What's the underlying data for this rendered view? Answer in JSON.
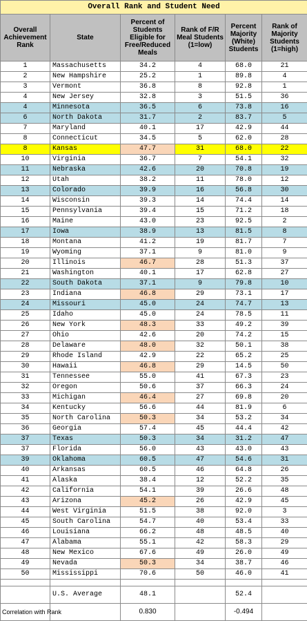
{
  "title": "Overall Rank and Student Need",
  "headers": {
    "rank": "Overall Achievement Rank",
    "state": "State",
    "pct_free": "Percent of Students Eligible for Free/Reduced Meals",
    "rank_free": "Rank of F/R Meal Students (1=low)",
    "pct_white": "Percent Majority (White) Students",
    "rank_white": "Rank of Majority Students (1=high)"
  },
  "rows": [
    {
      "rank": "1",
      "state": "Massachusetts",
      "pct_free": "34.2",
      "rank_free": "4",
      "pct_white": "68.0",
      "rank_white": "21",
      "highlight": "",
      "peach": false
    },
    {
      "rank": "2",
      "state": "New Hampshire",
      "pct_free": "25.2",
      "rank_free": "1",
      "pct_white": "89.8",
      "rank_white": "4",
      "highlight": "",
      "peach": false
    },
    {
      "rank": "3",
      "state": "Vermont",
      "pct_free": "36.8",
      "rank_free": "8",
      "pct_white": "92.8",
      "rank_white": "1",
      "highlight": "",
      "peach": false
    },
    {
      "rank": "4",
      "state": "New Jersey",
      "pct_free": "32.8",
      "rank_free": "3",
      "pct_white": "51.5",
      "rank_white": "36",
      "highlight": "",
      "peach": false
    },
    {
      "rank": "4",
      "state": "Minnesota",
      "pct_free": "36.5",
      "rank_free": "6",
      "pct_white": "73.8",
      "rank_white": "16",
      "highlight": "blue",
      "peach": false
    },
    {
      "rank": "6",
      "state": "North Dakota",
      "pct_free": "31.7",
      "rank_free": "2",
      "pct_white": "83.7",
      "rank_white": "5",
      "highlight": "blue",
      "peach": false
    },
    {
      "rank": "7",
      "state": "Maryland",
      "pct_free": "40.1",
      "rank_free": "17",
      "pct_white": "42.9",
      "rank_white": "44",
      "highlight": "",
      "peach": false
    },
    {
      "rank": "8",
      "state": "Connecticut",
      "pct_free": "34.5",
      "rank_free": "5",
      "pct_white": "62.0",
      "rank_white": "28",
      "highlight": "",
      "peach": false
    },
    {
      "rank": "8",
      "state": "Kansas",
      "pct_free": "47.7",
      "rank_free": "31",
      "pct_white": "68.0",
      "rank_white": "22",
      "highlight": "yellow",
      "peach": true
    },
    {
      "rank": "10",
      "state": "Virginia",
      "pct_free": "36.7",
      "rank_free": "7",
      "pct_white": "54.1",
      "rank_white": "32",
      "highlight": "",
      "peach": false
    },
    {
      "rank": "11",
      "state": "Nebraska",
      "pct_free": "42.6",
      "rank_free": "20",
      "pct_white": "70.8",
      "rank_white": "19",
      "highlight": "blue",
      "peach": false
    },
    {
      "rank": "12",
      "state": "Utah",
      "pct_free": "38.2",
      "rank_free": "11",
      "pct_white": "78.0",
      "rank_white": "12",
      "highlight": "",
      "peach": false
    },
    {
      "rank": "13",
      "state": "Colorado",
      "pct_free": "39.9",
      "rank_free": "16",
      "pct_white": "56.8",
      "rank_white": "30",
      "highlight": "blue",
      "peach": false
    },
    {
      "rank": "14",
      "state": "Wisconsin",
      "pct_free": "39.3",
      "rank_free": "14",
      "pct_white": "74.4",
      "rank_white": "14",
      "highlight": "",
      "peach": false
    },
    {
      "rank": "15",
      "state": "Pennsylvania",
      "pct_free": "39.4",
      "rank_free": "15",
      "pct_white": "71.2",
      "rank_white": "18",
      "highlight": "",
      "peach": false
    },
    {
      "rank": "16",
      "state": "Maine",
      "pct_free": "43.0",
      "rank_free": "23",
      "pct_white": "92.5",
      "rank_white": "2",
      "highlight": "",
      "peach": false
    },
    {
      "rank": "17",
      "state": "Iowa",
      "pct_free": "38.9",
      "rank_free": "13",
      "pct_white": "81.5",
      "rank_white": "8",
      "highlight": "blue",
      "peach": false
    },
    {
      "rank": "18",
      "state": "Montana",
      "pct_free": "41.2",
      "rank_free": "19",
      "pct_white": "81.7",
      "rank_white": "7",
      "highlight": "",
      "peach": false
    },
    {
      "rank": "19",
      "state": "Wyoming",
      "pct_free": "37.1",
      "rank_free": "9",
      "pct_white": "81.0",
      "rank_white": "9",
      "highlight": "",
      "peach": false
    },
    {
      "rank": "20",
      "state": "Illinois",
      "pct_free": "46.7",
      "rank_free": "28",
      "pct_white": "51.3",
      "rank_white": "37",
      "highlight": "",
      "peach": true
    },
    {
      "rank": "21",
      "state": "Washington",
      "pct_free": "40.1",
      "rank_free": "17",
      "pct_white": "62.8",
      "rank_white": "27",
      "highlight": "",
      "peach": false
    },
    {
      "rank": "22",
      "state": "South Dakota",
      "pct_free": "37.1",
      "rank_free": "9",
      "pct_white": "79.8",
      "rank_white": "10",
      "highlight": "blue",
      "peach": false
    },
    {
      "rank": "23",
      "state": "Indiana",
      "pct_free": "46.8",
      "rank_free": "29",
      "pct_white": "73.1",
      "rank_white": "17",
      "highlight": "",
      "peach": true
    },
    {
      "rank": "24",
      "state": "Missouri",
      "pct_free": "45.0",
      "rank_free": "24",
      "pct_white": "74.7",
      "rank_white": "13",
      "highlight": "blue",
      "peach": false
    },
    {
      "rank": "25",
      "state": "Idaho",
      "pct_free": "45.0",
      "rank_free": "24",
      "pct_white": "78.5",
      "rank_white": "11",
      "highlight": "",
      "peach": false
    },
    {
      "rank": "26",
      "state": "New York",
      "pct_free": "48.3",
      "rank_free": "33",
      "pct_white": "49.2",
      "rank_white": "39",
      "highlight": "",
      "peach": true
    },
    {
      "rank": "27",
      "state": "Ohio",
      "pct_free": "42.6",
      "rank_free": "20",
      "pct_white": "74.2",
      "rank_white": "15",
      "highlight": "",
      "peach": false
    },
    {
      "rank": "28",
      "state": "Delaware",
      "pct_free": "48.0",
      "rank_free": "32",
      "pct_white": "50.1",
      "rank_white": "38",
      "highlight": "",
      "peach": true
    },
    {
      "rank": "29",
      "state": "Rhode Island",
      "pct_free": "42.9",
      "rank_free": "22",
      "pct_white": "65.2",
      "rank_white": "25",
      "highlight": "",
      "peach": false
    },
    {
      "rank": "30",
      "state": "Hawaii",
      "pct_free": "46.8",
      "rank_free": "29",
      "pct_white": "14.5",
      "rank_white": "50",
      "highlight": "",
      "peach": true
    },
    {
      "rank": "31",
      "state": "Tennessee",
      "pct_free": "55.0",
      "rank_free": "41",
      "pct_white": "67.3",
      "rank_white": "23",
      "highlight": "",
      "peach": false
    },
    {
      "rank": "32",
      "state": "Oregon",
      "pct_free": "50.6",
      "rank_free": "37",
      "pct_white": "66.3",
      "rank_white": "24",
      "highlight": "",
      "peach": false
    },
    {
      "rank": "33",
      "state": "Michigan",
      "pct_free": "46.4",
      "rank_free": "27",
      "pct_white": "69.8",
      "rank_white": "20",
      "highlight": "",
      "peach": true
    },
    {
      "rank": "34",
      "state": "Kentucky",
      "pct_free": "56.6",
      "rank_free": "44",
      "pct_white": "81.9",
      "rank_white": "6",
      "highlight": "",
      "peach": false
    },
    {
      "rank": "35",
      "state": "North Carolina",
      "pct_free": "50.3",
      "rank_free": "34",
      "pct_white": "53.2",
      "rank_white": "34",
      "highlight": "",
      "peach": true
    },
    {
      "rank": "36",
      "state": "Georgia",
      "pct_free": "57.4",
      "rank_free": "45",
      "pct_white": "44.4",
      "rank_white": "42",
      "highlight": "",
      "peach": false
    },
    {
      "rank": "37",
      "state": "Texas",
      "pct_free": "50.3",
      "rank_free": "34",
      "pct_white": "31.2",
      "rank_white": "47",
      "highlight": "blue",
      "peach": false
    },
    {
      "rank": "37",
      "state": "Florida",
      "pct_free": "56.0",
      "rank_free": "43",
      "pct_white": "43.0",
      "rank_white": "43",
      "highlight": "",
      "peach": false
    },
    {
      "rank": "39",
      "state": "Oklahoma",
      "pct_free": "60.5",
      "rank_free": "47",
      "pct_white": "54.6",
      "rank_white": "31",
      "highlight": "blue",
      "peach": false
    },
    {
      "rank": "40",
      "state": "Arkansas",
      "pct_free": "60.5",
      "rank_free": "46",
      "pct_white": "64.8",
      "rank_white": "26",
      "highlight": "",
      "peach": false
    },
    {
      "rank": "41",
      "state": "Alaska",
      "pct_free": "38.4",
      "rank_free": "12",
      "pct_white": "52.2",
      "rank_white": "35",
      "highlight": "",
      "peach": false
    },
    {
      "rank": "42",
      "state": "California",
      "pct_free": "54.1",
      "rank_free": "39",
      "pct_white": "26.6",
      "rank_white": "48",
      "highlight": "",
      "peach": false
    },
    {
      "rank": "43",
      "state": "Arizona",
      "pct_free": "45.2",
      "rank_free": "26",
      "pct_white": "42.9",
      "rank_white": "45",
      "highlight": "",
      "peach": true
    },
    {
      "rank": "44",
      "state": "West Virginia",
      "pct_free": "51.5",
      "rank_free": "38",
      "pct_white": "92.0",
      "rank_white": "3",
      "highlight": "",
      "peach": false
    },
    {
      "rank": "45",
      "state": "South Carolina",
      "pct_free": "54.7",
      "rank_free": "40",
      "pct_white": "53.4",
      "rank_white": "33",
      "highlight": "",
      "peach": false
    },
    {
      "rank": "46",
      "state": "Louisiana",
      "pct_free": "66.2",
      "rank_free": "48",
      "pct_white": "48.5",
      "rank_white": "40",
      "highlight": "",
      "peach": false
    },
    {
      "rank": "47",
      "state": "Alabama",
      "pct_free": "55.1",
      "rank_free": "42",
      "pct_white": "58.3",
      "rank_white": "29",
      "highlight": "",
      "peach": false
    },
    {
      "rank": "48",
      "state": "New Mexico",
      "pct_free": "67.6",
      "rank_free": "49",
      "pct_white": "26.0",
      "rank_white": "49",
      "highlight": "",
      "peach": false
    },
    {
      "rank": "49",
      "state": "Nevada",
      "pct_free": "50.3",
      "rank_free": "34",
      "pct_white": "38.7",
      "rank_white": "46",
      "highlight": "",
      "peach": true
    },
    {
      "rank": "50",
      "state": "Mississippi",
      "pct_free": "70.6",
      "rank_free": "50",
      "pct_white": "46.0",
      "rank_white": "41",
      "highlight": "",
      "peach": false
    }
  ],
  "summary": {
    "avg_label": "U.S. Average",
    "avg_pct_free": "48.1",
    "avg_pct_white": "52.4",
    "corr_label": "Correlation with Rank",
    "corr_pct_free": "0.830",
    "corr_pct_white": "-0.494"
  },
  "colors": {
    "title_bg": "#fff2a8",
    "header_bg": "#c0c0c0",
    "highlight_blue": "#b8dce6",
    "highlight_yellow": "#ffff00",
    "peach": "#fad6b8"
  }
}
